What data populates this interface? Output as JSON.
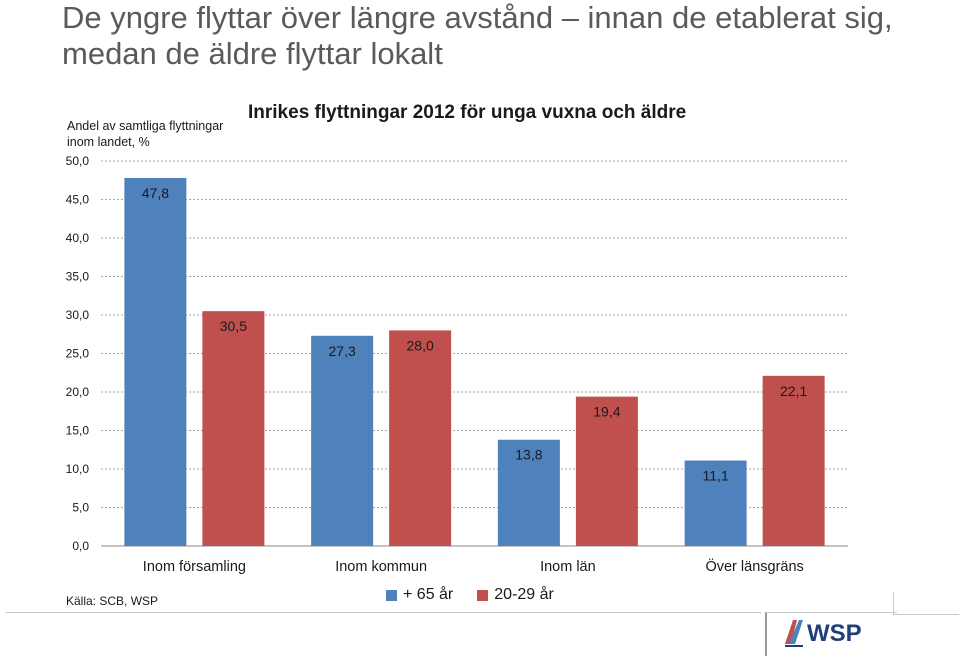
{
  "slide": {
    "title": "De yngre flyttar över längre avstånd – innan de etablerat sig, medan de äldre flyttar lokalt",
    "source": "Källa: SCB, WSP",
    "logo_text": "WSP"
  },
  "colors": {
    "series_65": "#4f81bd",
    "series_2029": "#c0504d",
    "grid": "#a6a6a6"
  },
  "chart_data": {
    "type": "bar",
    "title": "Inrikes flyttningar 2012 för unga vuxna och äldre",
    "ylabel": "Andel av  samtliga flyttningar inom landet, %",
    "xlabel": "",
    "categories": [
      "Inom församling",
      "Inom kommun",
      "Inom län",
      "Över länsgräns"
    ],
    "series": [
      {
        "name": "+ 65 år",
        "values": [
          47.8,
          27.3,
          13.8,
          11.1
        ],
        "labels": [
          "47,8",
          "27,3",
          "13,8",
          "11,1"
        ]
      },
      {
        "name": "20-29 år",
        "values": [
          30.5,
          28.0,
          19.4,
          22.1
        ],
        "labels": [
          "30,5",
          "28,0",
          "19,4",
          "22,1"
        ]
      }
    ],
    "ylim": [
      0,
      50
    ],
    "yticks": [
      0,
      5,
      10,
      15,
      20,
      25,
      30,
      35,
      40,
      45,
      50
    ],
    "ytick_labels": [
      "0,0",
      "5,0",
      "10,0",
      "15,0",
      "20,0",
      "25,0",
      "30,0",
      "35,0",
      "40,0",
      "45,0",
      "50,0"
    ],
    "grid": true,
    "legend_position": "bottom"
  }
}
